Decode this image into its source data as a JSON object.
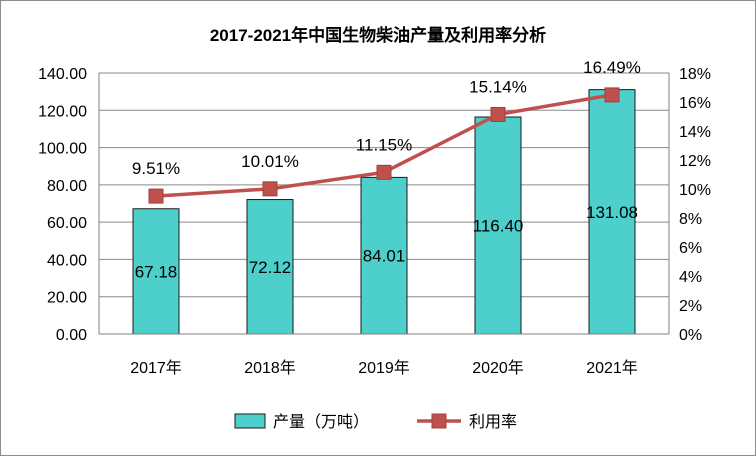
{
  "chart_data": {
    "type": "bar",
    "title": "2017-2021年中国生物柴油产量及利用率分析",
    "categories": [
      "2017年",
      "2018年",
      "2019年",
      "2020年",
      "2021年"
    ],
    "series": [
      {
        "name": "产量（万吨）",
        "type": "bar",
        "axis": "left",
        "values": [
          67.18,
          72.12,
          84.01,
          116.4,
          131.08
        ],
        "labels": [
          "67.18",
          "72.12",
          "84.01",
          "116.40",
          "131.08"
        ],
        "color": "#4dcfcb"
      },
      {
        "name": "利用率",
        "type": "line",
        "axis": "right",
        "values": [
          9.51,
          10.01,
          11.15,
          15.14,
          16.49
        ],
        "labels": [
          "9.51%",
          "10.01%",
          "11.15%",
          "15.14%",
          "16.49%"
        ],
        "color": "#c0504d"
      }
    ],
    "y_left": {
      "min": 0,
      "max": 140,
      "step": 20,
      "tick_labels": [
        "0.00",
        "20.00",
        "40.00",
        "60.00",
        "80.00",
        "100.00",
        "120.00",
        "140.00"
      ]
    },
    "y_right": {
      "min": 0,
      "max": 18,
      "step": 2,
      "tick_labels": [
        "0%",
        "2%",
        "4%",
        "6%",
        "8%",
        "10%",
        "12%",
        "14%",
        "16%",
        "18%"
      ]
    },
    "grid": true,
    "legend": "bottom"
  }
}
